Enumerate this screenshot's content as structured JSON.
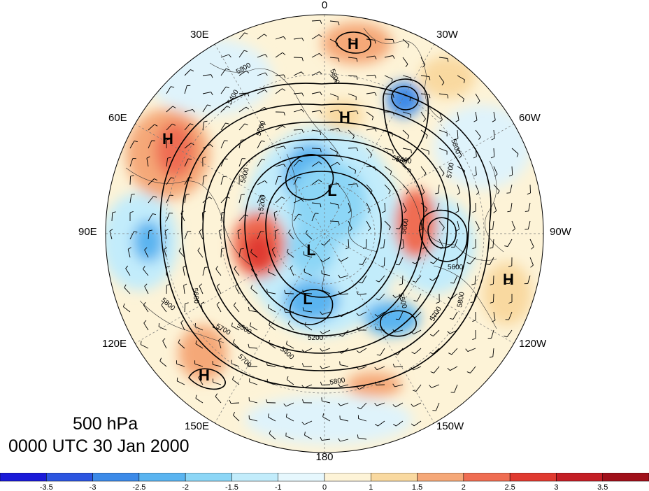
{
  "map": {
    "title_level": "500 hPa",
    "title_time": "0000 UTC 30 Jan 2000",
    "longitude_labels": [
      "0",
      "30W",
      "60W",
      "90W",
      "120W",
      "150W",
      "180",
      "150E",
      "120E",
      "90E",
      "60E",
      "30E"
    ],
    "centers": [
      {
        "label": "H",
        "kind": "high"
      },
      {
        "label": "H",
        "kind": "high"
      },
      {
        "label": "H",
        "kind": "high"
      },
      {
        "label": "H",
        "kind": "high"
      },
      {
        "label": "H",
        "kind": "high"
      },
      {
        "label": "L",
        "kind": "low"
      },
      {
        "label": "L",
        "kind": "low"
      },
      {
        "label": "L",
        "kind": "low"
      }
    ],
    "contour_labels": [
      "5800",
      "5800",
      "5400",
      "5500",
      "5200",
      "5600",
      "5700",
      "5600",
      "5500",
      "5800",
      "5700",
      "5600",
      "5800",
      "5500",
      "5600",
      "5200",
      "5400",
      "5700",
      "5800",
      "5800",
      "5700",
      "5400",
      "5500"
    ]
  },
  "colorbar": {
    "ticks": [
      "-3.5",
      "-3",
      "-2.5",
      "-2",
      "-1.5",
      "-1",
      "0",
      "1",
      "1.5",
      "2",
      "2.5",
      "3",
      "3.5"
    ],
    "colors": [
      "#1a1ad8",
      "#2c55e0",
      "#3c8ae8",
      "#5ab4f0",
      "#8cd6f6",
      "#c2ecfb",
      "#e6f7fd",
      "#fdf3d7",
      "#f9d9a0",
      "#f5a878",
      "#ef6d52",
      "#e03a30",
      "#c41e25",
      "#a0101a"
    ],
    "colors_note": "anomaly shading colors low to high"
  }
}
